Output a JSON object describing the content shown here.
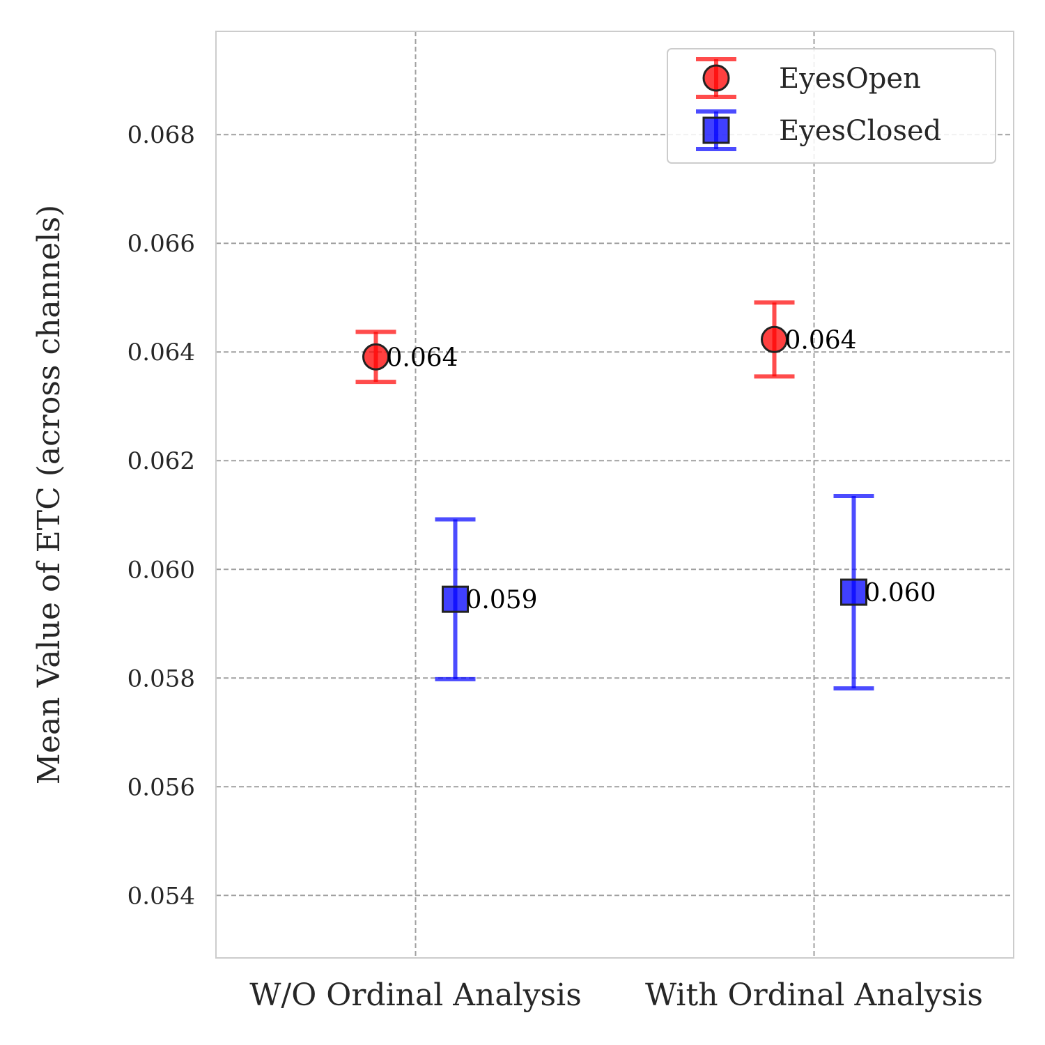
{
  "chart_data": {
    "type": "scatter",
    "ylabel": "Mean Value of ETC (across channels)",
    "categories": [
      "W/O Ordinal Analysis",
      "With Ordinal Analysis"
    ],
    "ylim": [
      0.05285,
      0.0699
    ],
    "yticks": [
      "0.054",
      "0.056",
      "0.058",
      "0.060",
      "0.062",
      "0.064",
      "0.066",
      "0.068"
    ],
    "grid": true,
    "legend_position": "top-right",
    "series": [
      {
        "name": "EyesOpen",
        "marker": "circle",
        "color": "#ff0000",
        "values": [
          0.06391,
          0.06423
        ],
        "errors": [
          0.00046,
          0.00068
        ],
        "labels": [
          "0.064",
          "0.064"
        ]
      },
      {
        "name": "EyesClosed",
        "marker": "square",
        "color": "#0000ff",
        "values": [
          0.05945,
          0.05958
        ],
        "errors": [
          0.00147,
          0.00177
        ],
        "labels": [
          "0.059",
          "0.060"
        ]
      }
    ]
  }
}
